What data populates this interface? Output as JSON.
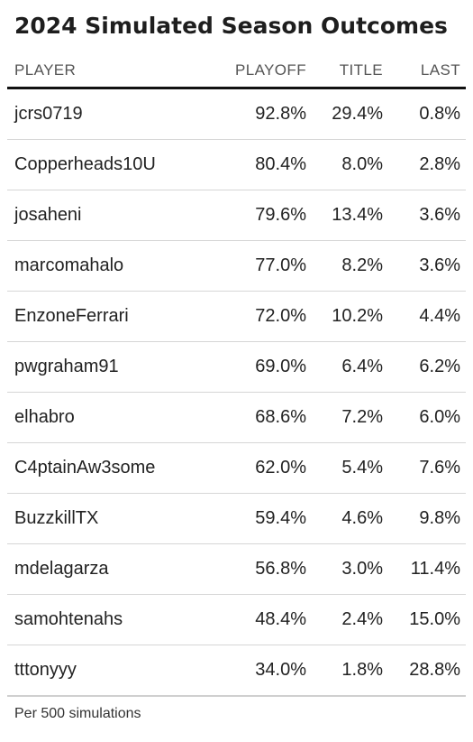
{
  "title": "2024 Simulated Season Outcomes",
  "columns": {
    "player": "PLAYER",
    "playoff": "PLAYOFF",
    "title": "TITLE",
    "last": "LAST"
  },
  "rows": [
    {
      "player": "jcrs0719",
      "playoff": "92.8%",
      "title": "29.4%",
      "last": "0.8%"
    },
    {
      "player": "Copperheads10U",
      "playoff": "80.4%",
      "title": "8.0%",
      "last": "2.8%"
    },
    {
      "player": "josaheni",
      "playoff": "79.6%",
      "title": "13.4%",
      "last": "3.6%"
    },
    {
      "player": "marcomahalo",
      "playoff": "77.0%",
      "title": "8.2%",
      "last": "3.6%"
    },
    {
      "player": "EnzoneFerrari",
      "playoff": "72.0%",
      "title": "10.2%",
      "last": "4.4%"
    },
    {
      "player": "pwgraham91",
      "playoff": "69.0%",
      "title": "6.4%",
      "last": "6.2%"
    },
    {
      "player": "elhabro",
      "playoff": "68.6%",
      "title": "7.2%",
      "last": "6.0%"
    },
    {
      "player": "C4ptainAw3some",
      "playoff": "62.0%",
      "title": "5.4%",
      "last": "7.6%"
    },
    {
      "player": "BuzzkillTX",
      "playoff": "59.4%",
      "title": "4.6%",
      "last": "9.8%"
    },
    {
      "player": "mdelagarza",
      "playoff": "56.8%",
      "title": "3.0%",
      "last": "11.4%"
    },
    {
      "player": "samohtenahs",
      "playoff": "48.4%",
      "title": "2.4%",
      "last": "15.0%"
    },
    {
      "player": "tttonyyy",
      "playoff": "34.0%",
      "title": "1.8%",
      "last": "28.8%"
    }
  ],
  "footnote": "Per 500 simulations",
  "chart_data": {
    "type": "table",
    "title": "2024 Simulated Season Outcomes",
    "columns": [
      "PLAYER",
      "PLAYOFF",
      "TITLE",
      "LAST"
    ],
    "categories": [
      "jcrs0719",
      "Copperheads10U",
      "josaheni",
      "marcomahalo",
      "EnzoneFerrari",
      "pwgraham91",
      "elhabro",
      "C4ptainAw3some",
      "BuzzkillTX",
      "mdelagarza",
      "samohtenahs",
      "tttonyyy"
    ],
    "series": [
      {
        "name": "PLAYOFF",
        "values": [
          92.8,
          80.4,
          79.6,
          77.0,
          72.0,
          69.0,
          68.6,
          62.0,
          59.4,
          56.8,
          48.4,
          34.0
        ]
      },
      {
        "name": "TITLE",
        "values": [
          29.4,
          8.0,
          13.4,
          8.2,
          10.2,
          6.4,
          7.2,
          5.4,
          4.6,
          3.0,
          2.4,
          1.8
        ]
      },
      {
        "name": "LAST",
        "values": [
          0.8,
          2.8,
          3.6,
          3.6,
          4.4,
          6.2,
          6.0,
          7.6,
          9.8,
          11.4,
          15.0,
          28.8
        ]
      }
    ],
    "unit": "%",
    "note": "Per 500 simulations"
  }
}
